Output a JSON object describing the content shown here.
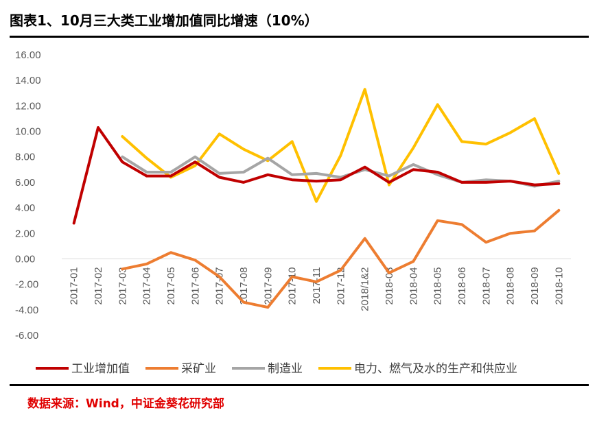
{
  "header": {
    "title": "图表1、10月三大类工业增加值同比增速（10%）"
  },
  "footer": {
    "source": "数据来源：Wind，中证金葵花研究部"
  },
  "chart_data": {
    "type": "line",
    "title": "图表1、10月三大类工业增加值同比增速（10%）",
    "categories": [
      "2017-01",
      "2017-02",
      "2017-03",
      "2017-04",
      "2017-05",
      "2017-06",
      "2017-07",
      "2017-08",
      "2017-09",
      "2017-10",
      "2017-11",
      "2017-12",
      "2018/1&2",
      "2018-03",
      "2018-04",
      "2018-05",
      "2018-06",
      "2018-07",
      "2018-08",
      "2018-09",
      "2018-10"
    ],
    "ylim": [
      -6,
      16
    ],
    "yticks": [
      "16.00",
      "14.00",
      "12.00",
      "10.00",
      "8.00",
      "6.00",
      "4.00",
      "2.00",
      "0.00",
      "-2.00",
      "-4.00",
      "-6.00"
    ],
    "xlabel": "",
    "ylabel": "",
    "legend_position": "bottom",
    "series": [
      {
        "name": "工业增加值",
        "color": "#c00000",
        "values": [
          2.8,
          10.3,
          7.6,
          6.5,
          6.5,
          7.6,
          6.4,
          6.0,
          6.6,
          6.2,
          6.1,
          6.2,
          7.2,
          6.0,
          7.0,
          6.8,
          6.0,
          6.0,
          6.1,
          5.8,
          5.9
        ]
      },
      {
        "name": "采矿业",
        "color": "#ed7d31",
        "values": [
          null,
          null,
          -0.8,
          -0.4,
          0.5,
          -0.1,
          -1.4,
          -3.4,
          -3.8,
          -1.4,
          -1.8,
          -0.9,
          1.6,
          -1.1,
          -0.2,
          3.0,
          2.7,
          1.3,
          2.0,
          2.2,
          3.8
        ]
      },
      {
        "name": "制造业",
        "color": "#a5a5a5",
        "values": [
          null,
          null,
          8.0,
          6.8,
          6.8,
          8.0,
          6.7,
          6.8,
          7.9,
          6.6,
          6.7,
          6.4,
          7.0,
          6.5,
          7.4,
          6.6,
          6.0,
          6.2,
          6.1,
          5.7,
          6.1
        ]
      },
      {
        "name": "电力、燃气及水的生产和供应业",
        "color": "#ffc000",
        "values": [
          null,
          null,
          9.6,
          7.9,
          6.4,
          7.3,
          9.8,
          8.6,
          7.7,
          9.2,
          4.5,
          8.1,
          13.3,
          5.8,
          8.7,
          12.1,
          9.2,
          9.0,
          9.9,
          11.0,
          6.7
        ]
      }
    ]
  }
}
